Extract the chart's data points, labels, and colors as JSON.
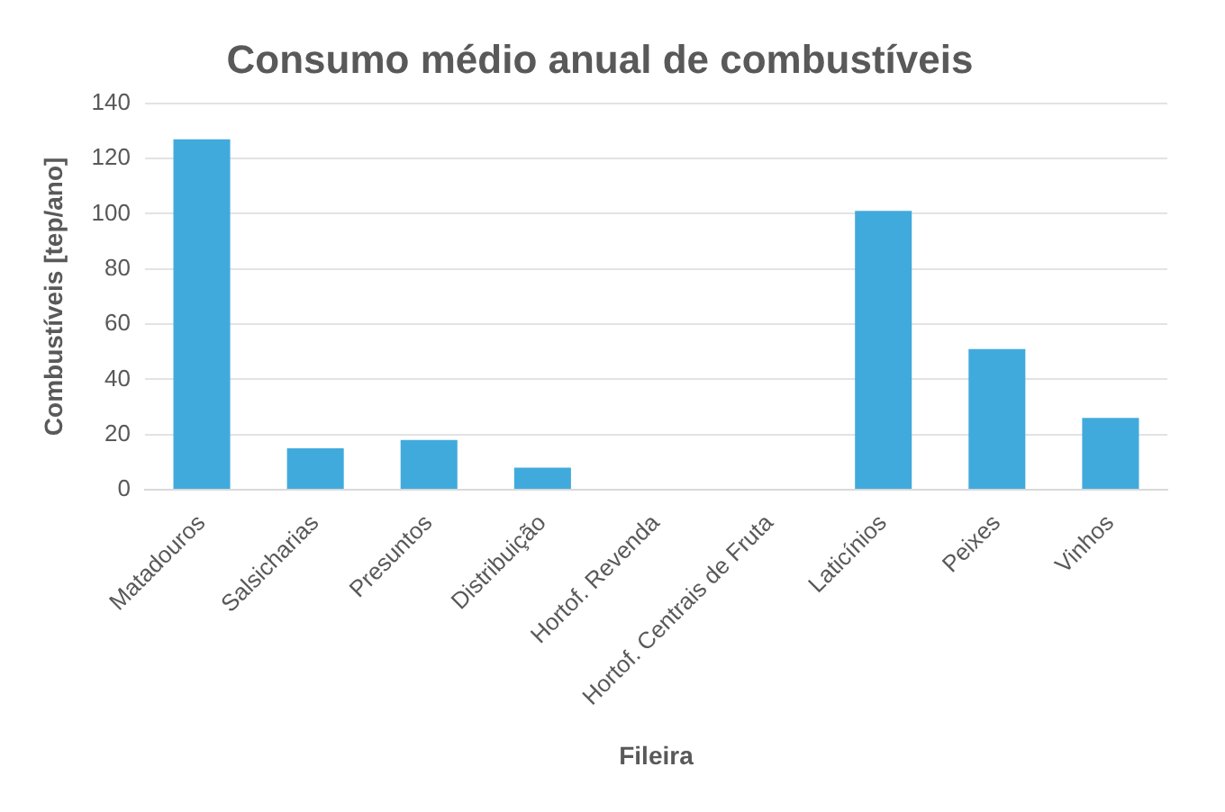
{
  "chart_data": {
    "type": "bar",
    "title": "Consumo médio anual de combustíveis",
    "xlabel": "Fileira",
    "ylabel": "Combustíveis [tep/ano]",
    "categories": [
      "Matadouros",
      "Salsicharias",
      "Presuntos",
      "Distribuição",
      "Hortof. Revenda",
      "Hortof. Centrais de Fruta",
      "Laticínios",
      "Peixes",
      "Vinhos"
    ],
    "values": [
      127,
      15,
      18,
      8,
      0,
      0,
      101,
      51,
      26
    ],
    "color": "#41aadc",
    "ylim": [
      0,
      140
    ],
    "yticks": [
      0,
      20,
      40,
      60,
      80,
      100,
      120,
      140
    ],
    "grid": "y"
  }
}
